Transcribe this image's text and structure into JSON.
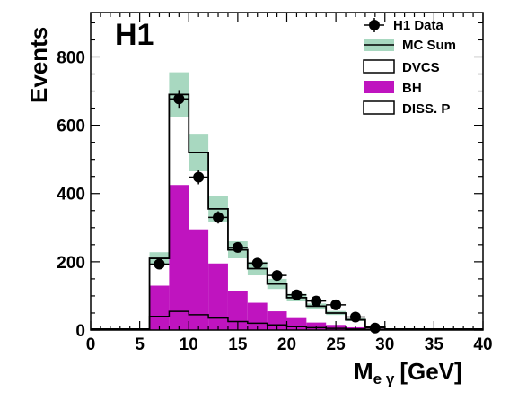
{
  "chart_data": {
    "type": "histogram",
    "experiment_label": "H1",
    "xlabel": {
      "main": "M",
      "sub": "e γ",
      "unit": "[GeV]"
    },
    "ylabel": "Events",
    "xlim": [
      0,
      40
    ],
    "ylim": [
      0,
      930
    ],
    "x_ticks": [
      0,
      5,
      10,
      15,
      20,
      25,
      30,
      35,
      40
    ],
    "y_ticks": [
      0,
      200,
      400,
      600,
      800
    ],
    "bin_edges": [
      6,
      8,
      10,
      12,
      14,
      16,
      18,
      20,
      22,
      24,
      26,
      28,
      30
    ],
    "legend_placement": "top-right",
    "legend": [
      "H1 Data",
      "MC Sum",
      "DVCS",
      "BH",
      "DISS. P"
    ],
    "colors": {
      "bh": "#bf14bf",
      "mc_band": "#a8d8c0",
      "mc_line": "#000000",
      "dvcs": "#ffffff",
      "data": "#000000"
    },
    "series": [
      {
        "name": "H1 Data",
        "kind": "points",
        "x": [
          7,
          9,
          11,
          13,
          15,
          17,
          19,
          21,
          23,
          25,
          27,
          29
        ],
        "y": [
          193,
          677,
          448,
          330,
          242,
          196,
          160,
          103,
          85,
          74,
          38,
          6
        ],
        "yerr": [
          14,
          26,
          21,
          18,
          15,
          14,
          13,
          10,
          9,
          9,
          6,
          3
        ]
      },
      {
        "name": "MC Sum",
        "kind": "step_band",
        "values": [
          210,
          690,
          520,
          355,
          235,
          180,
          135,
          95,
          70,
          50,
          30,
          10
        ],
        "band": [
          18,
          65,
          55,
          38,
          25,
          20,
          15,
          11,
          8,
          6,
          4,
          2
        ]
      },
      {
        "name": "DVCS",
        "kind": "bars",
        "values": [
          210,
          690,
          520,
          355,
          235,
          180,
          135,
          95,
          70,
          50,
          30,
          10
        ]
      },
      {
        "name": "BH",
        "kind": "bars",
        "values": [
          130,
          425,
          295,
          195,
          115,
          80,
          55,
          35,
          22,
          15,
          8,
          3
        ]
      },
      {
        "name": "DISS. P",
        "kind": "step",
        "values": [
          40,
          55,
          45,
          35,
          25,
          20,
          15,
          10,
          7,
          5,
          3,
          1
        ]
      }
    ]
  }
}
